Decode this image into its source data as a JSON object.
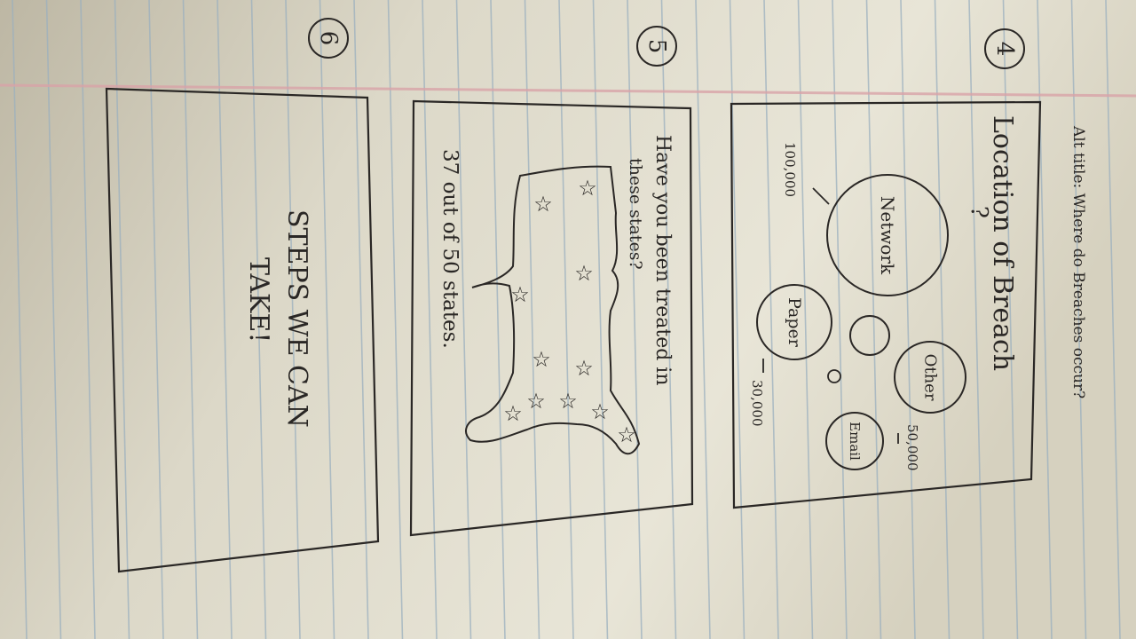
{
  "colors": {
    "paper_light": "#ebe8db",
    "paper_shadow": "#b9b3a1",
    "rule_line": "#9bb0bf",
    "margin_line": "#d8a3a8",
    "ink": "#2a2725"
  },
  "panels": {
    "p4": {
      "number": "4",
      "alt_title": "Alt title: Where do Breaches occur?",
      "title": "Location of Breach",
      "bubbles": {
        "network": "Network",
        "paper": "Paper",
        "other": "Other",
        "email": "Email"
      },
      "annotations": {
        "network_value": "100,000",
        "paper_value": "30,000",
        "email_value": "50,000"
      },
      "question_mark": "?"
    },
    "p5": {
      "number": "5",
      "title_line1": "Have you been treated in",
      "title_line2": "these states?",
      "caption": "37 out of 50 states."
    },
    "p6": {
      "number": "6",
      "line1": "STEPS WE CAN",
      "line2": "TAKE!"
    }
  }
}
